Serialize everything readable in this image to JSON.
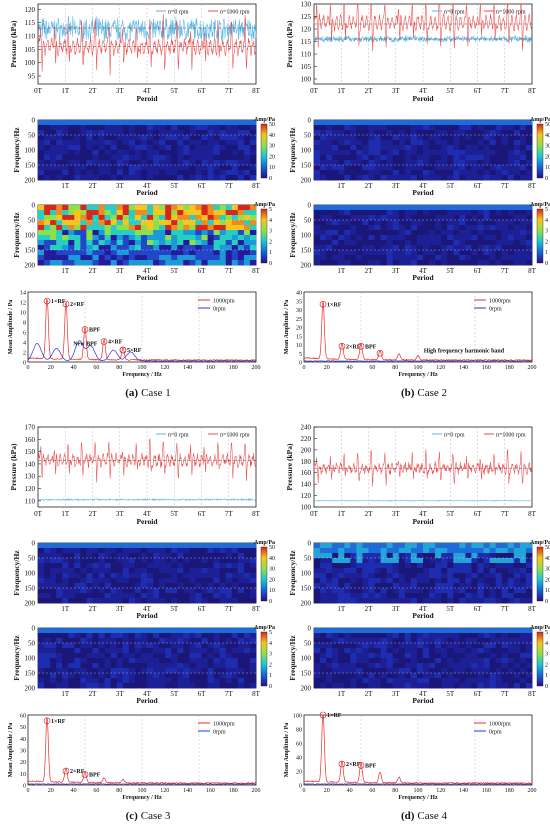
{
  "cases": [
    {
      "caption_letter": "(a)",
      "caption_text": "Case 1",
      "pressure": {
        "ylabel": "Pressure (kPa)",
        "xlabel": "Peroid",
        "ylim": [
          92,
          122
        ],
        "yticks": [
          "95",
          "100",
          "105",
          "110",
          "115",
          "120"
        ],
        "series": [
          {
            "name": "n=0 rpm",
            "color": "#5bb6e6",
            "mean": 112.5,
            "amp": 3.5,
            "peaks_per_T": 0,
            "noise": 3.5
          },
          {
            "name": "n=1000 rpm",
            "color": "#ee4b4b",
            "mean": 106.0,
            "amp": 9,
            "peaks_per_T": 2,
            "noise": 1.5
          }
        ],
        "hlines": [
          113,
          106
        ]
      },
      "cwt_top": {
        "ylabel": "Frequency/Hz",
        "xlabel": "Period",
        "cb_title": "Amp/Pa",
        "cb_ticks": [
          "0",
          "10",
          "20",
          "30",
          "40",
          "50"
        ],
        "style": "dark"
      },
      "cwt_bottom": {
        "ylabel": "Frequency/Hz",
        "xlabel": "Period",
        "cb_title": "Amp/Pa",
        "cb_ticks": [
          "0",
          "1",
          "2",
          "3",
          "4",
          "5"
        ],
        "style": "bright"
      },
      "spectrum": {
        "ylabel": "Mean Amplitude / Pa",
        "xlabel": "Frequency / Hz",
        "ylim": [
          0,
          14
        ],
        "yticks": [
          "0",
          "2",
          "4",
          "6",
          "8",
          "10",
          "12",
          "14"
        ],
        "legend": [
          "1000rpm",
          "0rpm"
        ],
        "annotations": [
          "1×RF",
          "2×RF",
          "BPF",
          "4×RF",
          "5×RF",
          "New BPF"
        ],
        "peaks_red": [
          [
            16.7,
            12.2
          ],
          [
            33.3,
            11.6
          ],
          [
            50,
            6.5
          ],
          [
            66.7,
            4.1
          ],
          [
            83.3,
            2.4
          ]
        ],
        "peaks_blue": [
          [
            8,
            3.5
          ],
          [
            25,
            2.5
          ],
          [
            45,
            4.0
          ],
          [
            55,
            3.0
          ],
          [
            75,
            2.2
          ],
          [
            90,
            1.8
          ]
        ]
      }
    },
    {
      "caption_letter": "(b)",
      "caption_text": "Case 2",
      "pressure": {
        "ylabel": "Pressure (kPa)",
        "xlabel": "Peroid",
        "ylim": [
          98,
          130
        ],
        "yticks": [
          "100",
          "105",
          "110",
          "115",
          "120",
          "125",
          "130"
        ],
        "series": [
          {
            "name": "n=0 rpm",
            "color": "#5bb6e6",
            "mean": 116.0,
            "amp": 1.2,
            "peaks_per_T": 0,
            "noise": 1.0
          },
          {
            "name": "n=1000 rpm",
            "color": "#ee4b4b",
            "mean": 122.5,
            "amp": 10,
            "peaks_per_T": 2,
            "noise": 1.2
          }
        ],
        "hlines": [
          122,
          116
        ]
      },
      "cwt_top": {
        "ylabel": "Frequency/Hz",
        "xlabel": "Period",
        "cb_title": "Amp/Pa",
        "cb_ticks": [
          "0",
          "10",
          "20",
          "30",
          "40",
          "50"
        ],
        "style": "dark"
      },
      "cwt_bottom": {
        "ylabel": "Frequency/Hz",
        "xlabel": "Period",
        "cb_title": "Amp/Pa",
        "cb_ticks": [
          "0",
          "1",
          "2",
          "3",
          "4",
          "5"
        ],
        "style": "dark2"
      },
      "spectrum": {
        "ylabel": "Mean Amplitude / Pa",
        "xlabel": "Frequency / Hz",
        "ylim": [
          0,
          40
        ],
        "yticks": [
          "0",
          "5",
          "10",
          "15",
          "20",
          "25",
          "30",
          "35",
          "40"
        ],
        "legend": [
          "1000rpm",
          "0rpm"
        ],
        "annotations": [
          "1×RF",
          "2×RF",
          "BPF",
          "High frequency harmonic band"
        ],
        "peaks_red": [
          [
            16.7,
            33
          ],
          [
            33.3,
            9
          ],
          [
            50,
            9
          ],
          [
            66.7,
            5
          ],
          [
            83.3,
            3.5
          ],
          [
            100,
            2.5
          ]
        ],
        "peaks_blue": []
      }
    },
    {
      "caption_letter": "(c)",
      "caption_text": "Case 3",
      "pressure": {
        "ylabel": "Pressure (kPa)",
        "xlabel": "Peroid",
        "ylim": [
          105,
          170
        ],
        "yticks": [
          "110",
          "120",
          "130",
          "140",
          "150",
          "160",
          "170"
        ],
        "series": [
          {
            "name": "n=0 rpm",
            "color": "#5bb6e6",
            "mean": 111.0,
            "amp": 0.6,
            "peaks_per_T": 0,
            "noise": 0.6
          },
          {
            "name": "n=1000 rpm",
            "color": "#ee4b4b",
            "mean": 143.0,
            "amp": 14,
            "peaks_per_T": 2,
            "noise": 3
          }
        ],
        "hlines": [
          143
        ]
      },
      "cwt_top": {
        "ylabel": "Frequency/Hz",
        "xlabel": "Period",
        "cb_title": "Amp/Pa",
        "cb_ticks": [
          "0",
          "10",
          "20",
          "30",
          "40",
          "50"
        ],
        "style": "dark"
      },
      "cwt_bottom": {
        "ylabel": "Frequency/Hz",
        "xlabel": "Period",
        "cb_title": "Amp/Pa",
        "cb_ticks": [
          "0",
          "1",
          "2",
          "3",
          "4",
          "5"
        ],
        "style": "dark2"
      },
      "spectrum": {
        "ylabel": "Mean Amplitude / Pa",
        "xlabel": "Frequency / Hz",
        "ylim": [
          0,
          60
        ],
        "yticks": [
          "0",
          "10",
          "20",
          "30",
          "40",
          "50",
          "60"
        ],
        "legend": [
          "1000rpm",
          "0rpm"
        ],
        "annotations": [
          "1×RF",
          "2×RF",
          "BPF"
        ],
        "peaks_red": [
          [
            16.7,
            55
          ],
          [
            33.3,
            12
          ],
          [
            50,
            9
          ],
          [
            66.7,
            4
          ],
          [
            83.3,
            3
          ]
        ],
        "peaks_blue": []
      }
    },
    {
      "caption_letter": "(d)",
      "caption_text": "Case 4",
      "pressure": {
        "ylabel": "Pressure (kPa)",
        "xlabel": "Peroid",
        "ylim": [
          100,
          240
        ],
        "yticks": [
          "100",
          "120",
          "140",
          "160",
          "180",
          "200",
          "220",
          "240"
        ],
        "series": [
          {
            "name": "n=0 rpm",
            "color": "#5bb6e6",
            "mean": 111.0,
            "amp": 0.6,
            "peaks_per_T": 0,
            "noise": 0.6
          },
          {
            "name": "n=1000 rpm",
            "color": "#ee4b4b",
            "mean": 168.0,
            "amp": 26,
            "peaks_per_T": 2,
            "noise": 6
          }
        ],
        "hlines": [
          168
        ]
      },
      "cwt_top": {
        "ylabel": "Frequency/Hz",
        "xlabel": "Period",
        "cb_title": "Amp/Pa",
        "cb_ticks": [
          "0",
          "10",
          "20",
          "30",
          "40",
          "50"
        ],
        "style": "mid"
      },
      "cwt_bottom": {
        "ylabel": "Frequency/Hz",
        "xlabel": "Period",
        "cb_title": "Amp/Pa",
        "cb_ticks": [
          "0",
          "1",
          "2",
          "3",
          "4",
          "5"
        ],
        "style": "dark2"
      },
      "spectrum": {
        "ylabel": "Mean Amplitude / Pa",
        "xlabel": "Frequency / Hz",
        "ylim": [
          0,
          100
        ],
        "yticks": [
          "0",
          "20",
          "40",
          "60",
          "80",
          "100"
        ],
        "legend": [
          "1000rpm",
          "0rpm"
        ],
        "annotations": [
          "1×RF",
          "2×RF",
          "BPF"
        ],
        "peaks_red": [
          [
            16.7,
            100
          ],
          [
            33.3,
            30
          ],
          [
            50,
            28
          ],
          [
            66.7,
            15
          ],
          [
            83.3,
            8
          ]
        ],
        "peaks_blue": []
      }
    }
  ],
  "period_ticks": [
    "0T",
    "1T",
    "2T",
    "3T",
    "4T",
    "5T",
    "6T",
    "7T",
    "8T"
  ],
  "period_ticks_cwt": [
    "1T",
    "2T",
    "3T",
    "4T",
    "5T",
    "6T",
    "7T",
    "8T"
  ],
  "freq_ticks_cwt": [
    "50",
    "100",
    "150",
    "200"
  ],
  "freq_ticks_cwt_top": "0",
  "spectrum_xticks": [
    "0",
    "20",
    "40",
    "60",
    "80",
    "100",
    "120",
    "140",
    "160",
    "180",
    "200"
  ],
  "chart_data": [
    {
      "type": "line",
      "title": "",
      "xlabel": "Peroid",
      "ylabel": "Pressure (kPa)",
      "series": [
        {
          "name": "n=0 rpm"
        },
        {
          "name": "n=1000 rpm"
        }
      ],
      "ylim": [
        92,
        122
      ],
      "x": [
        "0T",
        "1T",
        "2T",
        "3T",
        "4T",
        "5T",
        "6T",
        "7T",
        "8T"
      ]
    },
    {
      "type": "line",
      "title": "",
      "xlabel": "Frequency / Hz",
      "ylabel": "Mean Amplitude / Pa",
      "series": [
        {
          "name": "1000rpm"
        },
        {
          "name": "0rpm"
        }
      ],
      "xlim": [
        0,
        200
      ]
    }
  ]
}
